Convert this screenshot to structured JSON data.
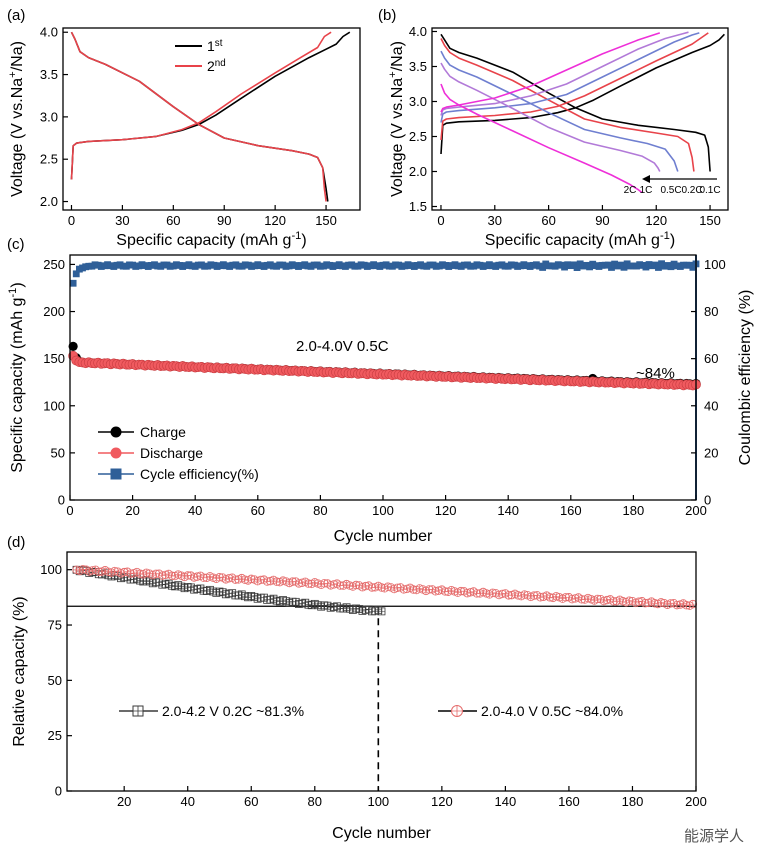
{
  "chart_data": [
    {
      "panel": "(a)",
      "type": "line",
      "xlabel": "Specific capacity (mAh g",
      "xlabel_sup": "-1",
      "xlabel_end": ")",
      "ylabel": "Voltage (V vs.Na",
      "ylabel_sup": "+",
      "ylabel_end": "/Na)",
      "xlim": [
        -5,
        170
      ],
      "ylim": [
        1.9,
        4.05
      ],
      "xticks": [
        0,
        30,
        60,
        90,
        120,
        150
      ],
      "yticks": [
        2.0,
        2.5,
        3.0,
        3.5,
        4.0
      ],
      "legend": [
        {
          "base": "1",
          "sup": "st",
          "color": "#000000"
        },
        {
          "base": "2",
          "sup": "nd",
          "color": "#e8434a"
        }
      ],
      "series": [
        {
          "name": "1st charge",
          "color": "#000000",
          "x": [
            0,
            1,
            3,
            10,
            30,
            50,
            65,
            75,
            85,
            100,
            120,
            140,
            150,
            156,
            160,
            164
          ],
          "y": [
            2.26,
            2.66,
            2.69,
            2.71,
            2.73,
            2.77,
            2.84,
            2.91,
            3.02,
            3.22,
            3.48,
            3.7,
            3.8,
            3.86,
            3.95,
            4.0
          ]
        },
        {
          "name": "1st discharge",
          "color": "#000000",
          "x": [
            0,
            2,
            5,
            10,
            20,
            40,
            60,
            75,
            90,
            110,
            130,
            140,
            145,
            148,
            150,
            151
          ],
          "y": [
            4.0,
            3.92,
            3.77,
            3.7,
            3.62,
            3.42,
            3.12,
            2.91,
            2.75,
            2.66,
            2.6,
            2.56,
            2.52,
            2.4,
            2.15,
            2.0
          ]
        },
        {
          "name": "2nd charge",
          "color": "#e8434a",
          "x": [
            0,
            1,
            3,
            10,
            30,
            50,
            65,
            75,
            85,
            100,
            120,
            135,
            145,
            149,
            153
          ],
          "y": [
            2.26,
            2.66,
            2.69,
            2.71,
            2.73,
            2.77,
            2.85,
            2.93,
            3.06,
            3.27,
            3.52,
            3.7,
            3.82,
            3.95,
            4.0
          ]
        },
        {
          "name": "2nd discharge",
          "color": "#e8434a",
          "x": [
            0,
            2,
            5,
            10,
            20,
            40,
            60,
            75,
            90,
            110,
            130,
            140,
            145,
            148,
            149,
            150
          ],
          "y": [
            4.0,
            3.92,
            3.77,
            3.7,
            3.62,
            3.42,
            3.12,
            2.91,
            2.75,
            2.66,
            2.6,
            2.56,
            2.52,
            2.4,
            2.15,
            2.0
          ]
        }
      ]
    },
    {
      "panel": "(b)",
      "type": "line",
      "xlabel": "Specific capacity (mAh g",
      "xlabel_sup": "-1",
      "xlabel_end": ")",
      "ylabel": "Voltage (V vs.Na",
      "ylabel_sup": "+",
      "ylabel_end": "/Na)",
      "xlim": [
        -5,
        160
      ],
      "ylim": [
        1.45,
        4.05
      ],
      "xticks": [
        0,
        30,
        60,
        90,
        120,
        150
      ],
      "yticks": [
        1.5,
        2.0,
        2.5,
        3.0,
        3.5,
        4.0
      ],
      "rate_labels": [
        "2C",
        "1C",
        "0.5C",
        "0.2C",
        "0.1C"
      ],
      "series": [
        {
          "name": "0.1C",
          "color": "#000000",
          "charge": {
            "x": [
              0,
              1,
              3,
              10,
              30,
              50,
              65,
              75,
              85,
              100,
              120,
              140,
              150,
              155,
              158
            ],
            "y": [
              2.25,
              2.66,
              2.69,
              2.71,
              2.73,
              2.77,
              2.84,
              2.91,
              3.02,
              3.22,
              3.48,
              3.7,
              3.8,
              3.88,
              3.96
            ]
          },
          "discharge": {
            "x": [
              0,
              2,
              5,
              10,
              20,
              40,
              60,
              75,
              90,
              110,
              130,
              142,
              147,
              149,
              150
            ],
            "y": [
              3.96,
              3.88,
              3.76,
              3.7,
              3.62,
              3.42,
              3.12,
              2.91,
              2.75,
              2.66,
              2.6,
              2.56,
              2.52,
              2.35,
              2.0
            ]
          }
        },
        {
          "name": "0.2C",
          "color": "#e8434a",
          "charge": {
            "x": [
              0,
              1,
              3,
              10,
              30,
              50,
              65,
              80,
              100,
              120,
              140,
              149
            ],
            "y": [
              2.45,
              2.72,
              2.75,
              2.77,
              2.8,
              2.85,
              2.93,
              3.08,
              3.33,
              3.58,
              3.82,
              3.98
            ]
          },
          "discharge": {
            "x": [
              0,
              2,
              5,
              10,
              20,
              40,
              60,
              80,
              100,
              120,
              132,
              138,
              140,
              141
            ],
            "y": [
              3.9,
              3.8,
              3.7,
              3.62,
              3.52,
              3.3,
              3.02,
              2.75,
              2.63,
              2.55,
              2.5,
              2.4,
              2.2,
              2.0
            ]
          }
        },
        {
          "name": "0.5C",
          "color": "#6f7fd0",
          "charge": {
            "x": [
              0,
              1,
              3,
              10,
              30,
              50,
              70,
              90,
              110,
              130,
              140,
              144
            ],
            "y": [
              2.7,
              2.82,
              2.85,
              2.87,
              2.91,
              2.97,
              3.1,
              3.35,
              3.6,
              3.85,
              3.95,
              3.98
            ]
          },
          "discharge": {
            "x": [
              0,
              2,
              5,
              10,
              20,
              40,
              60,
              80,
              100,
              115,
              125,
              130,
              132
            ],
            "y": [
              3.72,
              3.62,
              3.52,
              3.45,
              3.35,
              3.1,
              2.84,
              2.6,
              2.48,
              2.4,
              2.32,
              2.15,
              2.0
            ]
          }
        },
        {
          "name": "1C",
          "color": "#b27ad8",
          "charge": {
            "x": [
              0,
              1,
              3,
              10,
              30,
              50,
              70,
              90,
              110,
              125,
              135,
              138
            ],
            "y": [
              2.8,
              2.88,
              2.9,
              2.92,
              2.97,
              3.08,
              3.25,
              3.5,
              3.75,
              3.9,
              3.97,
              3.99
            ]
          },
          "discharge": {
            "x": [
              0,
              2,
              5,
              10,
              20,
              40,
              60,
              80,
              100,
              112,
              119,
              121,
              122
            ],
            "y": [
              3.55,
              3.46,
              3.36,
              3.28,
              3.16,
              2.9,
              2.63,
              2.42,
              2.3,
              2.22,
              2.12,
              2.05,
              2.0
            ]
          }
        },
        {
          "name": "2C",
          "color": "#ee2fd8",
          "charge": {
            "x": [
              0,
              1,
              3,
              10,
              30,
              50,
              70,
              90,
              110,
              122
            ],
            "y": [
              2.85,
              2.9,
              2.92,
              2.95,
              3.05,
              3.22,
              3.45,
              3.68,
              3.88,
              3.98
            ]
          },
          "discharge": {
            "x": [
              0,
              2,
              5,
              10,
              20,
              40,
              60,
              80,
              95,
              105,
              110,
              112
            ],
            "y": [
              3.25,
              3.12,
              3.03,
              2.95,
              2.82,
              2.58,
              2.34,
              2.12,
              1.95,
              1.82,
              1.74,
              1.7
            ]
          }
        }
      ]
    },
    {
      "panel": "(c)",
      "type": "scatter",
      "xlabel": "Cycle number",
      "ylabel": "Specific capacity (mAh g",
      "ylabel_sup": "-1",
      "ylabel_end": ")",
      "y2label": "Coulombic efficiency (%)",
      "xlim": [
        0,
        200
      ],
      "ylim": [
        0,
        260
      ],
      "y2lim": [
        0,
        104
      ],
      "xticks": [
        0,
        20,
        40,
        60,
        80,
        100,
        120,
        140,
        160,
        180,
        200
      ],
      "yticks": [
        0,
        50,
        100,
        150,
        200,
        250
      ],
      "y2ticks": [
        0,
        20,
        40,
        60,
        80,
        100
      ],
      "annotation": "2.0-4.0V  0.5C",
      "retention_label": "~84%",
      "legend": [
        {
          "label": "Charge",
          "color": "#000000",
          "marker": "circle"
        },
        {
          "label": "Discharge",
          "color": "#f05a5f",
          "marker": "circle"
        },
        {
          "label": "Cycle efficiency(%)",
          "color": "#2f5f98",
          "marker": "square"
        }
      ],
      "charge": {
        "first": 163,
        "second": 151,
        "third": 147,
        "start": 146,
        "end": 123,
        "outlier_cycle": 167,
        "outlier_value": 129
      },
      "discharge": {
        "first": 153,
        "second": 148,
        "start": 146,
        "end": 122
      },
      "efficiency": {
        "cycles_1_5": [
          92,
          96,
          98,
          98.5,
          99
        ],
        "steady": 99.5
      }
    },
    {
      "panel": "(d)",
      "type": "scatter",
      "xlabel": "Cycle number",
      "ylabel": "Relative capacity (%)",
      "xlim": [
        2,
        200
      ],
      "ylim": [
        0,
        108
      ],
      "xticks": [
        20,
        40,
        60,
        80,
        100,
        120,
        140,
        160,
        180,
        200
      ],
      "yticks": [
        0,
        25,
        50,
        75,
        100
      ],
      "hline": 83.5,
      "vline": 100,
      "series": [
        {
          "name": "2.0-4.2 V  0.2C ~81.3%",
          "color": "#3a3a3a",
          "marker": "square-cross",
          "x_range": [
            5,
            101
          ],
          "start": 100,
          "end": 81.3
        },
        {
          "name": "2.0-4.0 V  0.5C ~84.0%",
          "color": "#e56c6c",
          "marker": "circle-cross",
          "x_range": [
            5,
            199
          ],
          "start": 100,
          "end": 84.0
        }
      ]
    }
  ],
  "watermark": "能源学人"
}
